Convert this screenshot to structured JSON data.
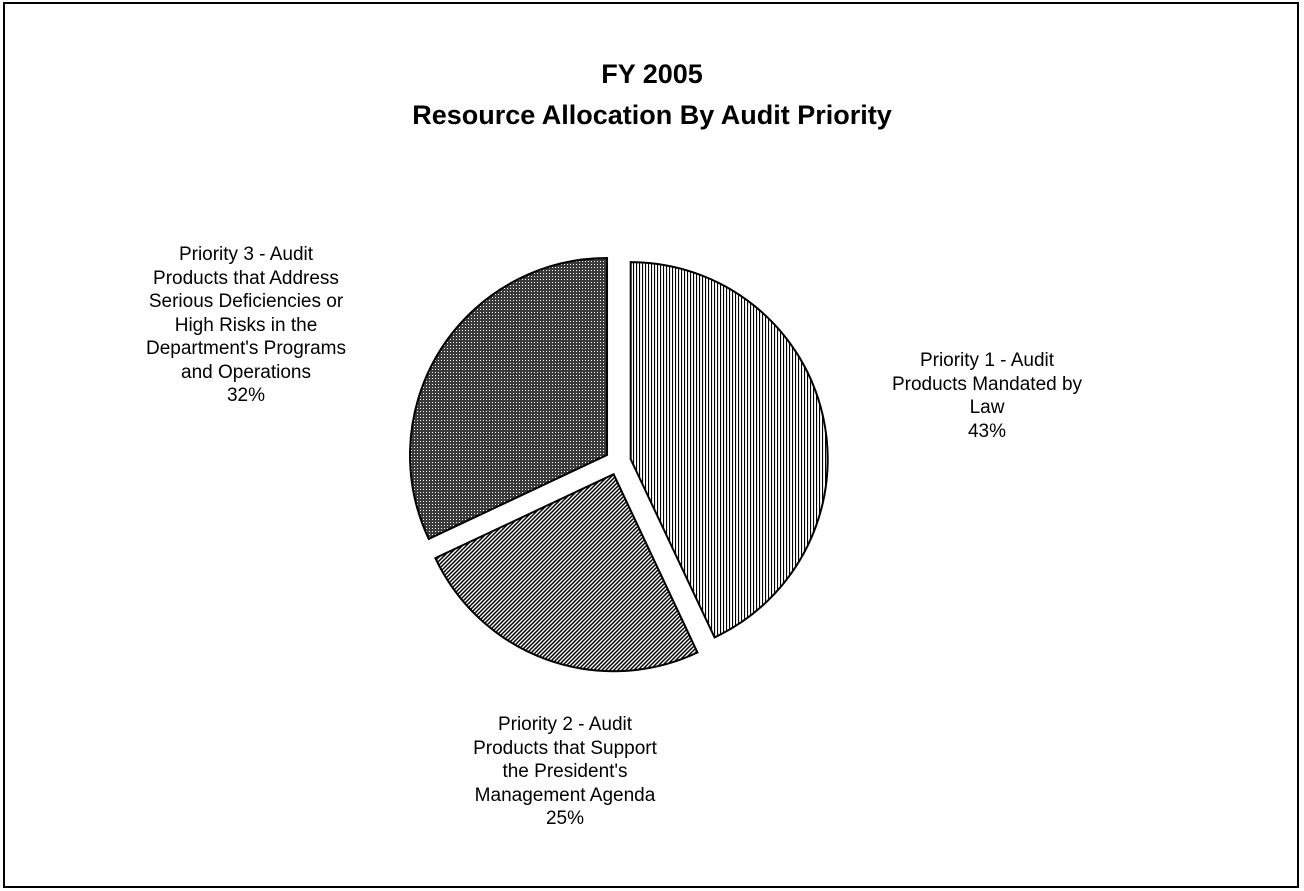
{
  "chart_data": {
    "type": "pie",
    "title": "FY 2005",
    "subtitle": "Resource Allocation By Audit Priority",
    "slices": [
      {
        "lines": [
          "Priority 1 - Audit",
          "Products Mandated by",
          "Law"
        ],
        "value": 43,
        "pct_label": "43%",
        "fill": "vertical-lines"
      },
      {
        "lines": [
          "Priority 2 - Audit",
          "Products that Support",
          "the President's",
          "Management Agenda"
        ],
        "value": 25,
        "pct_label": "25%",
        "fill": "diagonal-lines"
      },
      {
        "lines": [
          "Priority 3 - Audit",
          "Products that Address",
          "Serious Deficiencies or",
          "High Risks in the",
          "Department's Programs",
          "and Operations"
        ],
        "value": 32,
        "pct_label": "32%",
        "fill": "dense-dots"
      }
    ],
    "start_angle": "12 o'clock",
    "direction": "clockwise",
    "exploded": true,
    "legend": "none",
    "colors": {
      "ink": "#000000",
      "background": "#ffffff"
    }
  }
}
